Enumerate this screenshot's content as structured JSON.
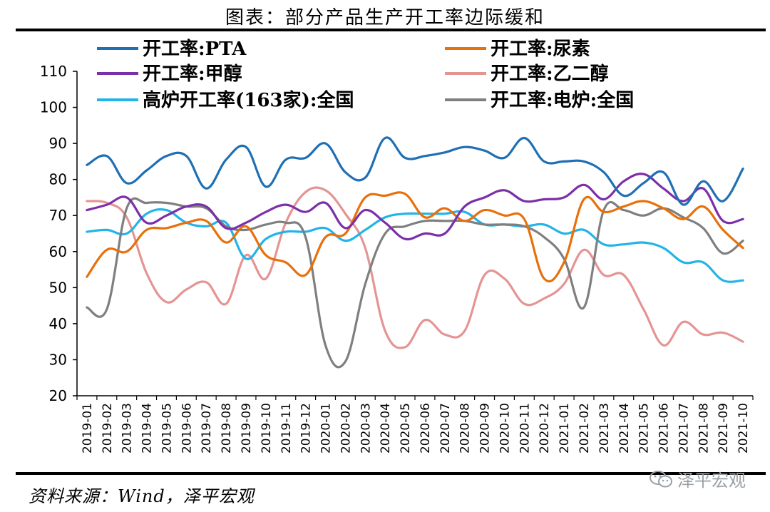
{
  "title": "图表：部分产品生产开工率边际缓和",
  "source": "资料来源：Wind，泽平宏观",
  "watermark": "泽平宏观",
  "chart_data": {
    "type": "line",
    "title": "图表：部分产品生产开工率边际缓和",
    "xlabel": "",
    "ylabel": "",
    "ylim": [
      20,
      110
    ],
    "yticks": [
      20,
      30,
      40,
      50,
      60,
      70,
      80,
      90,
      100,
      110
    ],
    "grid": false,
    "legend_position": "top",
    "categories": [
      "2019-01",
      "2019-02",
      "2019-03",
      "2019-04",
      "2019-05",
      "2019-06",
      "2019-07",
      "2019-08",
      "2019-09",
      "2019-10",
      "2019-11",
      "2019-12",
      "2020-01",
      "2020-02",
      "2020-03",
      "2020-04",
      "2020-05",
      "2020-06",
      "2020-07",
      "2020-08",
      "2020-09",
      "2020-10",
      "2020-11",
      "2020-12",
      "2021-01",
      "2021-02",
      "2021-03",
      "2021-04",
      "2021-05",
      "2021-06",
      "2021-07",
      "2021-08",
      "2021-09",
      "2021-10"
    ],
    "series": [
      {
        "name": "开工率:PTA",
        "color": "#1f6fb4",
        "values": [
          84,
          86.5,
          79,
          82.5,
          86.5,
          86.5,
          77.5,
          85.5,
          89,
          78,
          85.5,
          86,
          90,
          82,
          80.5,
          91.5,
          86,
          86.5,
          87.5,
          89,
          88,
          86,
          91.5,
          85,
          85,
          85,
          82,
          75.5,
          79,
          82,
          73,
          79.5,
          74,
          83
        ]
      },
      {
        "name": "开工率:尿素",
        "color": "#e8700a",
        "values": [
          53,
          60.5,
          60,
          66,
          66.5,
          68,
          68.5,
          62.5,
          67,
          59,
          57,
          53.5,
          64,
          65,
          75,
          75.5,
          76,
          69.5,
          72,
          68.5,
          71.5,
          70,
          69,
          52.5,
          57,
          74.5,
          71,
          72.5,
          74,
          72,
          69,
          72.5,
          66,
          61
        ]
      },
      {
        "name": "开工率:甲醇",
        "color": "#7b2fa8",
        "values": [
          71.5,
          73,
          75,
          68,
          70,
          72.5,
          72.5,
          66.5,
          68,
          71,
          73,
          71,
          73.5,
          66.5,
          71.5,
          68,
          63.5,
          65,
          65,
          72.5,
          75,
          77,
          74,
          74.5,
          75,
          78.5,
          74.5,
          79.5,
          81.5,
          77.5,
          74,
          77.5,
          68.5,
          69
        ]
      },
      {
        "name": "开工率:乙二醇",
        "color": "#e59494",
        "values": [
          74,
          73.5,
          69.5,
          54,
          46,
          49.5,
          51.5,
          45.5,
          59,
          52.5,
          68,
          76.5,
          77,
          70.5,
          61,
          38,
          33.5,
          41,
          37,
          38,
          53.5,
          52.5,
          45.5,
          47,
          51,
          60.5,
          53.5,
          53.5,
          44,
          34,
          40.5,
          37,
          37.5,
          35
        ]
      },
      {
        "name": "高炉开工率(163家):全国",
        "color": "#22b4e8",
        "values": [
          65.5,
          66,
          65,
          70.5,
          71.5,
          68,
          67,
          68,
          58,
          63.5,
          65.5,
          65.5,
          66.5,
          63,
          66,
          69.5,
          70.5,
          70.5,
          70.5,
          71,
          67.5,
          67.5,
          67,
          67.5,
          65,
          66,
          62,
          62,
          62.5,
          61,
          57,
          57,
          52,
          52
        ]
      },
      {
        "name": "开工率:电炉:全国",
        "color": "#7f7f7f",
        "values": [
          44.5,
          44,
          72,
          73.5,
          73.5,
          72.5,
          72,
          67,
          66,
          67.5,
          68,
          64,
          34,
          29.5,
          51,
          65,
          67,
          68.5,
          68.5,
          68.5,
          67.5,
          67.5,
          67,
          64,
          58,
          44.5,
          71.5,
          71.5,
          70,
          72,
          69.5,
          66.5,
          59.5,
          63
        ]
      }
    ]
  }
}
